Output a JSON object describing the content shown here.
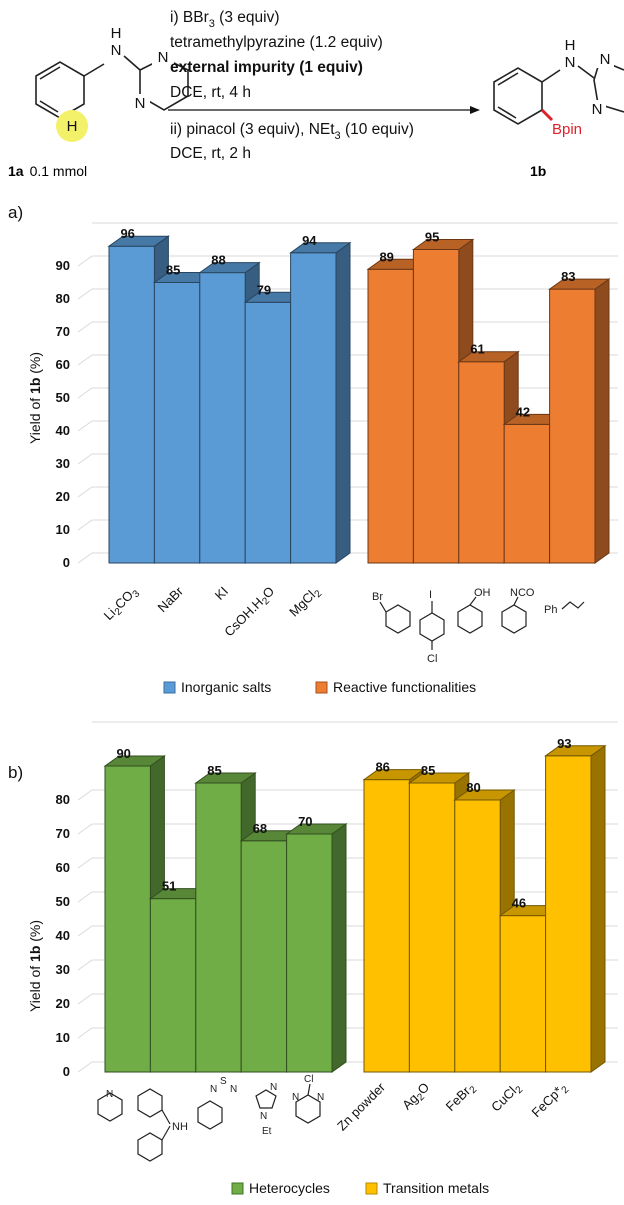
{
  "scheme": {
    "reactant_label": "1a",
    "reactant_amount": "0.1 mmol",
    "product_label": "1b",
    "product_group": "Bpin",
    "conditions_i": [
      "i) BBr",
      "3",
      " (3 equiv)"
    ],
    "conditions_i2": "tetramethylpyrazine (1.2 equiv)",
    "conditions_i3": "external impurity (1 equiv)",
    "conditions_i4": "DCE, rt, 4 h",
    "conditions_ii": [
      "ii) pinacol (3 equiv), NEt",
      "3",
      " (10 equiv)"
    ],
    "conditions_ii2": "DCE, rt, 2 h"
  },
  "colors": {
    "inorganic": "#5b9bd5",
    "reactive": "#ed7d31",
    "heterocycles": "#70ad47",
    "transition": "#ffc000"
  },
  "chart_data": [
    {
      "panel": "a)",
      "type": "bar",
      "ylabel_prefix": "Yield of ",
      "ylabel_bold": "1b",
      "ylabel_suffix": " (%)",
      "ylim": [
        0,
        100
      ],
      "yticks": [
        0,
        10,
        20,
        30,
        40,
        50,
        60,
        70,
        80,
        90
      ],
      "grid": true,
      "legend_position": "bottom",
      "series": [
        {
          "name": "Inorganic salts",
          "color": "#5b9bd5",
          "categories": [
            "Li2CO3",
            "NaBr",
            "KI",
            "CsOH.H2O",
            "MgCl2"
          ],
          "values": [
            96,
            85,
            88,
            79,
            94
          ]
        },
        {
          "name": "Reactive functionalities",
          "color": "#ed7d31",
          "categories": [
            "bromobenzene",
            "4-chloroiodobenzene",
            "phenol",
            "phenyl isocyanate",
            "styrene"
          ],
          "values": [
            89,
            95,
            61,
            42,
            83
          ]
        }
      ]
    },
    {
      "panel": "b)",
      "type": "bar",
      "ylabel_prefix": "Yield of ",
      "ylabel_bold": "1b",
      "ylabel_suffix": " (%)",
      "ylim": [
        0,
        100
      ],
      "yticks": [
        0,
        10,
        20,
        30,
        40,
        50,
        60,
        70,
        80
      ],
      "grid": true,
      "legend_position": "bottom",
      "series": [
        {
          "name": "Heterocycles",
          "color": "#70ad47",
          "categories": [
            "pyridine",
            "carbazole",
            "benzothiadiazole",
            "N-ethylimidazole",
            "2-chloropyrimidine"
          ],
          "values": [
            90,
            51,
            85,
            68,
            70
          ]
        },
        {
          "name": "Transition metals",
          "color": "#ffc000",
          "categories": [
            "Zn powder",
            "Ag2O",
            "FeBr2",
            "CuCl2",
            "FeCp*2"
          ],
          "values": [
            86,
            85,
            80,
            46,
            93
          ]
        }
      ]
    }
  ]
}
